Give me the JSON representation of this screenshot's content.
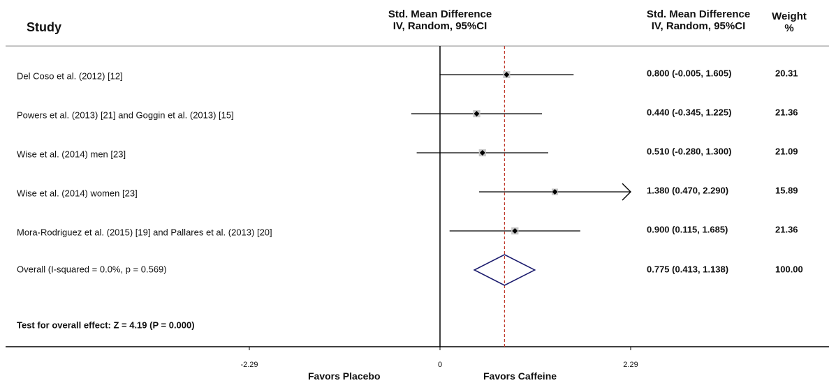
{
  "headers": {
    "study": "Study",
    "smd_plot_line1": "Std. Mean Difference",
    "smd_plot_line2": "IV, Random, 95%CI",
    "smd_col_line1": "Std. Mean Difference",
    "smd_col_line2": "IV, Random, 95%CI",
    "weight_line1": "Weight",
    "weight_line2": "%"
  },
  "chart_data": {
    "type": "forest",
    "title": "",
    "xlabel_left": "Favors Placebo",
    "xlabel_right": "Favors Caffeine",
    "x_ticks": [
      {
        "value": -2.29,
        "label": "-2.29"
      },
      {
        "value": 0,
        "label": "0"
      },
      {
        "value": 2.29,
        "label": "2.29"
      }
    ],
    "xlim": [
      -2.29,
      2.29
    ],
    "reference_line": 0,
    "pooled_line": 0.775,
    "studies": [
      {
        "label": "Del Coso et al. (2012) [12]",
        "estimate": 0.8,
        "lower": -0.005,
        "upper": 1.605,
        "ci_text": "0.800 (-0.005, 1.605)",
        "weight": "20.31"
      },
      {
        "label": "Powers et al. (2013) [21] and Goggin et al. (2013) [15]",
        "estimate": 0.44,
        "lower": -0.345,
        "upper": 1.225,
        "ci_text": "0.440 (-0.345, 1.225)",
        "weight": "21.36"
      },
      {
        "label": "Wise et al. (2014) men [23]",
        "estimate": 0.51,
        "lower": -0.28,
        "upper": 1.3,
        "ci_text": "0.510 (-0.280, 1.300)",
        "weight": "21.09"
      },
      {
        "label": "Wise et al. (2014) women [23]",
        "estimate": 1.38,
        "lower": 0.47,
        "upper": 2.29,
        "ci_text": "1.380 (0.470, 2.290)",
        "weight": "15.89",
        "arrow_right": true
      },
      {
        "label": "Mora-Rodriguez et al. (2015) [19] and Pallares et al. (2013) [20]",
        "estimate": 0.9,
        "lower": 0.115,
        "upper": 1.685,
        "ci_text": "0.900 (0.115, 1.685)",
        "weight": "21.36"
      }
    ],
    "overall": {
      "label": "Overall (I-squared = 0.0%, p = 0.569)",
      "estimate": 0.775,
      "lower": 0.413,
      "upper": 1.138,
      "ci_text": "0.775 (0.413, 1.138)",
      "weight": "100.00"
    },
    "test_text": "Test for overall effect: Z = 4.19 (P = 0.000)",
    "colors": {
      "line": "#000000",
      "diamond": "#1c1c6e",
      "pooled_dash": "#c0392b",
      "weight_box": "#c8c8c8"
    }
  }
}
